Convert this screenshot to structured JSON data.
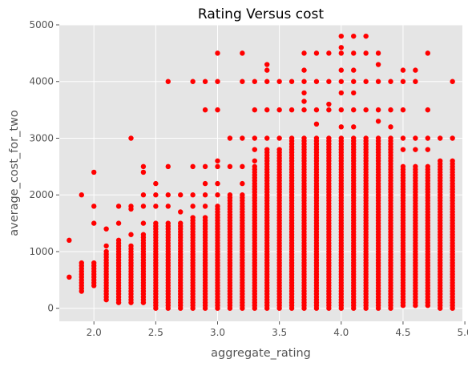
{
  "chart_data": {
    "type": "scatter",
    "title": "Rating Versus cost",
    "xlabel": "aggregate_rating",
    "ylabel": "average_cost_for_two",
    "xlim": [
      1.72,
      4.98
    ],
    "ylim": [
      -230,
      5000
    ],
    "xticks": [
      "2.0",
      "2.5",
      "3.0",
      "3.5",
      "4.0",
      "4.5",
      "5.0"
    ],
    "yticks": [
      "0",
      "1000",
      "2000",
      "3000",
      "4000",
      "5000"
    ],
    "grid": true,
    "style": "ggplot",
    "colors": {
      "background": "#e5e5e5",
      "grid": "#ffffff",
      "points": "#ff0000"
    },
    "columns": [
      {
        "x": 1.8,
        "min": 550,
        "max": 550,
        "extra": [
          1200
        ]
      },
      {
        "x": 1.9,
        "min": 300,
        "max": 800,
        "extra": [
          2000
        ]
      },
      {
        "x": 2.0,
        "min": 400,
        "max": 800,
        "extra": [
          1500,
          1800,
          2400
        ]
      },
      {
        "x": 2.1,
        "min": 150,
        "max": 1000,
        "extra": [
          1100,
          1400
        ]
      },
      {
        "x": 2.2,
        "min": 100,
        "max": 1200,
        "extra": [
          1500,
          1800
        ]
      },
      {
        "x": 2.3,
        "min": 100,
        "max": 1100,
        "extra": [
          1300,
          1750,
          1800,
          3000
        ]
      },
      {
        "x": 2.4,
        "min": 100,
        "max": 1300,
        "extra": [
          1500,
          1800,
          2000,
          2400,
          2500
        ]
      },
      {
        "x": 2.5,
        "min": 0,
        "max": 1500,
        "extra": [
          1800,
          2000,
          2200
        ]
      },
      {
        "x": 2.6,
        "min": 0,
        "max": 1500,
        "extra": [
          1800,
          2000,
          2500,
          4000
        ]
      },
      {
        "x": 2.7,
        "min": 0,
        "max": 1500,
        "extra": [
          1700,
          2000
        ]
      },
      {
        "x": 2.8,
        "min": 0,
        "max": 1600,
        "extra": [
          1800,
          2000,
          2500,
          4000
        ]
      },
      {
        "x": 2.9,
        "min": 0,
        "max": 1600,
        "extra": [
          1800,
          2000,
          2200,
          2500,
          3500,
          4000
        ]
      },
      {
        "x": 3.0,
        "min": 0,
        "max": 1800,
        "extra": [
          2000,
          2200,
          2500,
          2600,
          3500,
          4000,
          4500
        ]
      },
      {
        "x": 3.1,
        "min": 0,
        "max": 2000,
        "extra": [
          2500,
          3000
        ]
      },
      {
        "x": 3.2,
        "min": 0,
        "max": 2000,
        "extra": [
          2200,
          2500,
          3000,
          4000,
          4500
        ]
      },
      {
        "x": 3.3,
        "min": 0,
        "max": 2500,
        "extra": [
          2600,
          2800,
          3000,
          3500,
          4000
        ]
      },
      {
        "x": 3.4,
        "min": 0,
        "max": 2800,
        "extra": [
          3000,
          3500,
          4000,
          4200,
          4300
        ]
      },
      {
        "x": 3.5,
        "min": 0,
        "max": 2800,
        "extra": [
          3000,
          3500,
          4000
        ]
      },
      {
        "x": 3.6,
        "min": 0,
        "max": 3000,
        "extra": [
          3500,
          4000
        ]
      },
      {
        "x": 3.7,
        "min": 0,
        "max": 3000,
        "extra": [
          3500,
          3650,
          3800,
          4000,
          4200,
          4500
        ]
      },
      {
        "x": 3.8,
        "min": 0,
        "max": 3000,
        "extra": [
          3250,
          3500,
          4000,
          4500
        ]
      },
      {
        "x": 3.9,
        "min": 0,
        "max": 3000,
        "extra": [
          3500,
          3600,
          4000,
          4500
        ]
      },
      {
        "x": 4.0,
        "min": 0,
        "max": 3000,
        "extra": [
          3200,
          3500,
          3800,
          4000,
          4200,
          4500,
          4600,
          4800
        ]
      },
      {
        "x": 4.1,
        "min": 0,
        "max": 3000,
        "extra": [
          3200,
          3500,
          3800,
          4000,
          4200,
          4500,
          4800
        ]
      },
      {
        "x": 4.2,
        "min": 0,
        "max": 3000,
        "extra": [
          3500,
          4000,
          4500,
          4800
        ]
      },
      {
        "x": 4.3,
        "min": 0,
        "max": 3000,
        "extra": [
          3300,
          3500,
          4000,
          4300,
          4500
        ]
      },
      {
        "x": 4.4,
        "min": 0,
        "max": 3000,
        "extra": [
          3200,
          3500,
          4000
        ]
      },
      {
        "x": 4.5,
        "min": 50,
        "max": 2500,
        "extra": [
          2800,
          3000,
          3500,
          4000,
          4200
        ]
      },
      {
        "x": 4.6,
        "min": 50,
        "max": 2500,
        "extra": [
          2800,
          3000,
          4000,
          4200
        ]
      },
      {
        "x": 4.7,
        "min": 50,
        "max": 2500,
        "extra": [
          2800,
          3000,
          3500,
          4500
        ]
      },
      {
        "x": 4.8,
        "min": 0,
        "max": 2600,
        "extra": [
          3000
        ]
      },
      {
        "x": 4.9,
        "min": 0,
        "max": 2600,
        "extra": [
          3000,
          4000
        ]
      }
    ]
  }
}
